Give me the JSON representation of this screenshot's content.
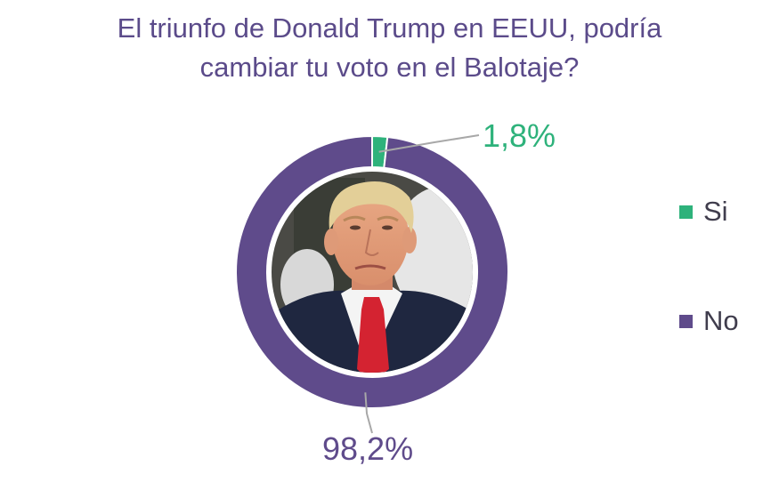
{
  "chart_data": {
    "type": "pie",
    "title_lines": [
      "El triunfo de Donald Trump en EEUU, podría",
      "cambiar tu voto en el Balotaje?"
    ],
    "categories": [
      "Si",
      "No"
    ],
    "values": [
      1.8,
      98.2
    ],
    "value_labels": [
      "1,8%",
      "98,2%"
    ],
    "colors": [
      "#2eb27b",
      "#5f4b8b"
    ],
    "donut": true,
    "legend_position": "right"
  }
}
